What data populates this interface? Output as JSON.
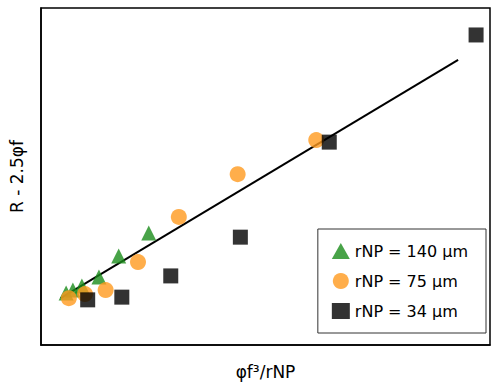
{
  "chart_data": {
    "type": "scatter",
    "x_label": "φf³/rNP",
    "y_label": "R - 2.5φf",
    "xlim": [
      0,
      10
    ],
    "ylim": [
      0,
      10
    ],
    "tick_labels": false,
    "grid": false,
    "legend": "lower right",
    "series": [
      {
        "name": "rNP = 140 μm",
        "color": "#1a8c1a",
        "marker": "triangle",
        "x": [
          0.56,
          0.71,
          0.91,
          1.29,
          1.73,
          2.4
        ],
        "values": [
          1.54,
          1.63,
          1.75,
          2.02,
          2.64,
          3.32
        ]
      },
      {
        "name": "rNP = 75 μm",
        "color": "#ff9a1e",
        "marker": "circle",
        "x": [
          0.62,
          0.98,
          1.44,
          2.16,
          3.07,
          4.38,
          6.13
        ],
        "values": [
          1.39,
          1.51,
          1.63,
          2.46,
          3.8,
          5.07,
          6.08
        ]
      },
      {
        "name": "rNP = 34 μm",
        "color": "#000000",
        "marker": "square",
        "x": [
          1.04,
          1.8,
          2.89,
          4.44,
          6.42,
          9.69
        ],
        "values": [
          1.34,
          1.42,
          2.05,
          3.2,
          6.02,
          9.2
        ]
      },
      {
        "type": "line",
        "color": "#000000",
        "line_style": "solid",
        "x": [
          0.44,
          9.29
        ],
        "values": [
          1.39,
          8.46
        ]
      }
    ]
  }
}
